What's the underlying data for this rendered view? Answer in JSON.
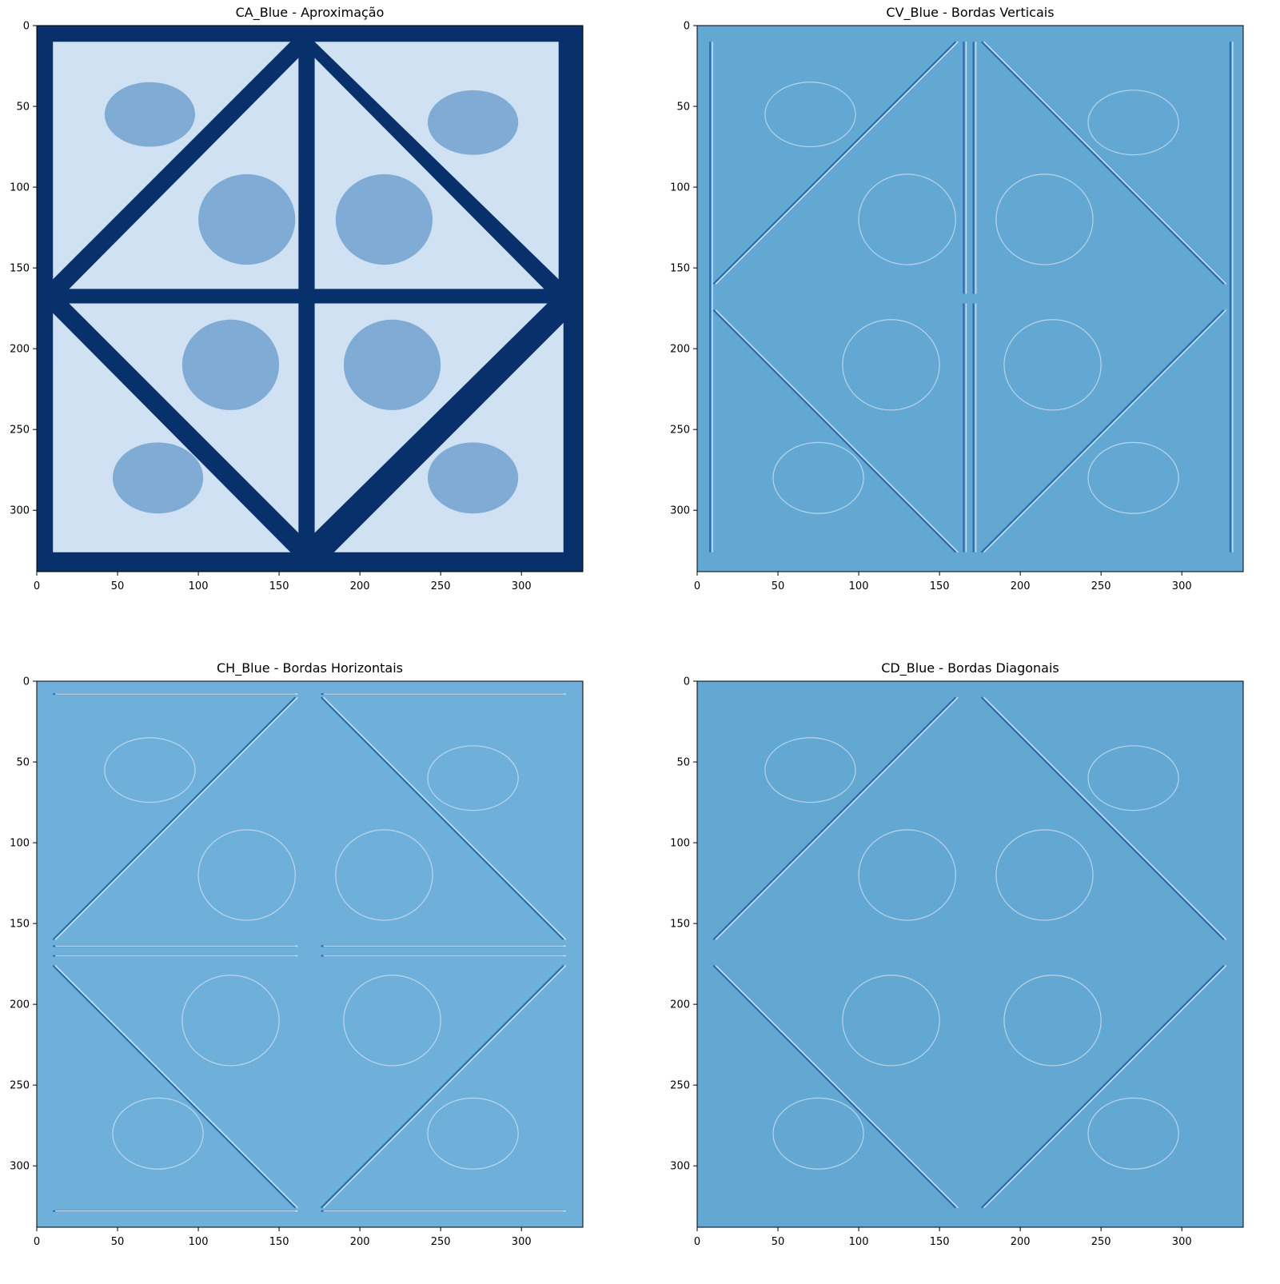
{
  "panels": [
    {
      "title": "CA_Blue - Aproximação",
      "variant": "approx",
      "background_color": "#08306b",
      "cell_color": "#cfe1f2",
      "line_color": "#08306b",
      "x_ticks": [
        "0",
        "50",
        "100",
        "150",
        "200",
        "250",
        "300"
      ],
      "y_ticks": [
        "0",
        "50",
        "100",
        "150",
        "200",
        "250",
        "300"
      ]
    },
    {
      "title": "CV_Blue - Bordas Verticais",
      "variant": "vertical",
      "background_color": "#63a8d3",
      "cell_color": "#63a8d3",
      "line_color": "#1c5fa6",
      "x_ticks": [
        "0",
        "50",
        "100",
        "150",
        "200",
        "250",
        "300"
      ],
      "y_ticks": [
        "0",
        "50",
        "100",
        "150",
        "200",
        "250",
        "300"
      ]
    },
    {
      "title": "CH_Blue - Bordas Horizontais",
      "variant": "horizontal",
      "background_color": "#6fb0da",
      "cell_color": "#6fb0da",
      "line_color": "#1c5fa6",
      "x_ticks": [
        "0",
        "50",
        "100",
        "150",
        "200",
        "250",
        "300"
      ],
      "y_ticks": [
        "0",
        "50",
        "100",
        "150",
        "200",
        "250",
        "300"
      ]
    },
    {
      "title": "CD_Blue - Bordas Diagonais",
      "variant": "diagonal",
      "background_color": "#63a8d3",
      "cell_color": "#63a8d3",
      "line_color": "#1c5fa6",
      "x_ticks": [
        "0",
        "50",
        "100",
        "150",
        "200",
        "250",
        "300"
      ],
      "y_ticks": [
        "0",
        "50",
        "100",
        "150",
        "200",
        "250",
        "300"
      ]
    }
  ]
}
